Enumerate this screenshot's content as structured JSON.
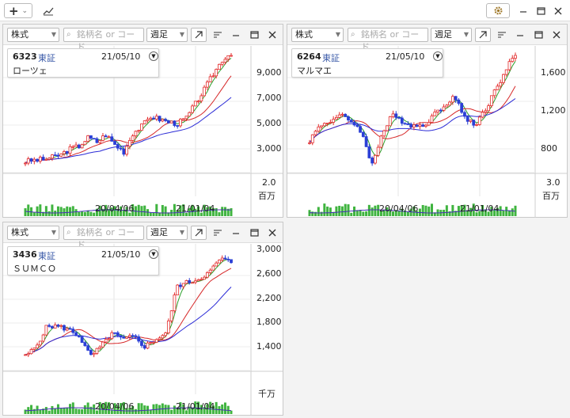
{
  "toolbar": {
    "add_label": "+",
    "add_arrow": "⌄",
    "chart_icon": "chart",
    "settings_icon": "gear",
    "minimize_icon": "minimize",
    "maximize_icon": "maximize",
    "close_icon": "close"
  },
  "panels": [
    {
      "id": "p1",
      "type_select": "株式",
      "search_placeholder": "銘柄名 or コード",
      "period_select": "週足",
      "code": "6323",
      "market": "東証",
      "date": "21/05/10",
      "name": "ローツェ",
      "y_ticks": [
        "9,000",
        "7,000",
        "5,000",
        "3,000"
      ],
      "vol_tick": "2.0",
      "vol_unit": "百万",
      "x_ticks": [
        "20/04/06",
        "21/01/04"
      ]
    },
    {
      "id": "p2",
      "type_select": "株式",
      "search_placeholder": "銘柄名 or コード",
      "period_select": "週足",
      "code": "6264",
      "market": "東証",
      "date": "21/05/10",
      "name": "マルマエ",
      "y_ticks": [
        "1,600",
        "1,200",
        "800"
      ],
      "vol_tick": "3.0",
      "vol_unit": "百万",
      "x_ticks": [
        "20/04/06",
        "21/01/04"
      ]
    },
    {
      "id": "p3",
      "type_select": "株式",
      "search_placeholder": "銘柄名 or コード",
      "period_select": "週足",
      "code": "3436",
      "market": "東証",
      "date": "21/05/10",
      "name": "ＳＵＭＣＯ",
      "y_ticks": [
        "3,000",
        "2,600",
        "2,200",
        "1,800",
        "1,400"
      ],
      "vol_tick": "",
      "vol_unit": "千万",
      "x_ticks": [
        "20/04/06",
        "21/01/04"
      ]
    }
  ],
  "chart_data": [
    {
      "type": "candlestick",
      "series": [
        {
          "name": "",
          "close": [
            2200,
            2300,
            2350,
            2500,
            2700,
            3100,
            3300,
            3900,
            3600,
            4100,
            3400,
            2900,
            4200,
            4700,
            5400,
            5200,
            5000,
            4900,
            5300,
            6300,
            7300,
            8400,
            9400,
            9900
          ]
        }
      ],
      "moving_averages": 3,
      "volume_max": 2.0,
      "volume_unit": "百万"
    },
    {
      "type": "candlestick",
      "series": [
        {
          "name": "",
          "close": [
            800,
            950,
            1000,
            1050,
            1000,
            900,
            550,
            850,
            1050,
            1000,
            950,
            950,
            1050,
            1150,
            1250,
            1050,
            950,
            1100,
            1300,
            1500,
            1680
          ]
        }
      ],
      "moving_averages": 3,
      "volume_max": 3.0,
      "volume_unit": "百万"
    },
    {
      "type": "candlestick",
      "series": [
        {
          "name": "",
          "close": [
            1350,
            1500,
            1800,
            1800,
            1750,
            1650,
            1350,
            1500,
            1700,
            1600,
            1650,
            1500,
            1600,
            1700,
            2400,
            2450,
            2500,
            2600,
            2800,
            2750
          ]
        }
      ],
      "moving_averages": 3,
      "volume_max": 0,
      "volume_unit": "千万"
    }
  ]
}
